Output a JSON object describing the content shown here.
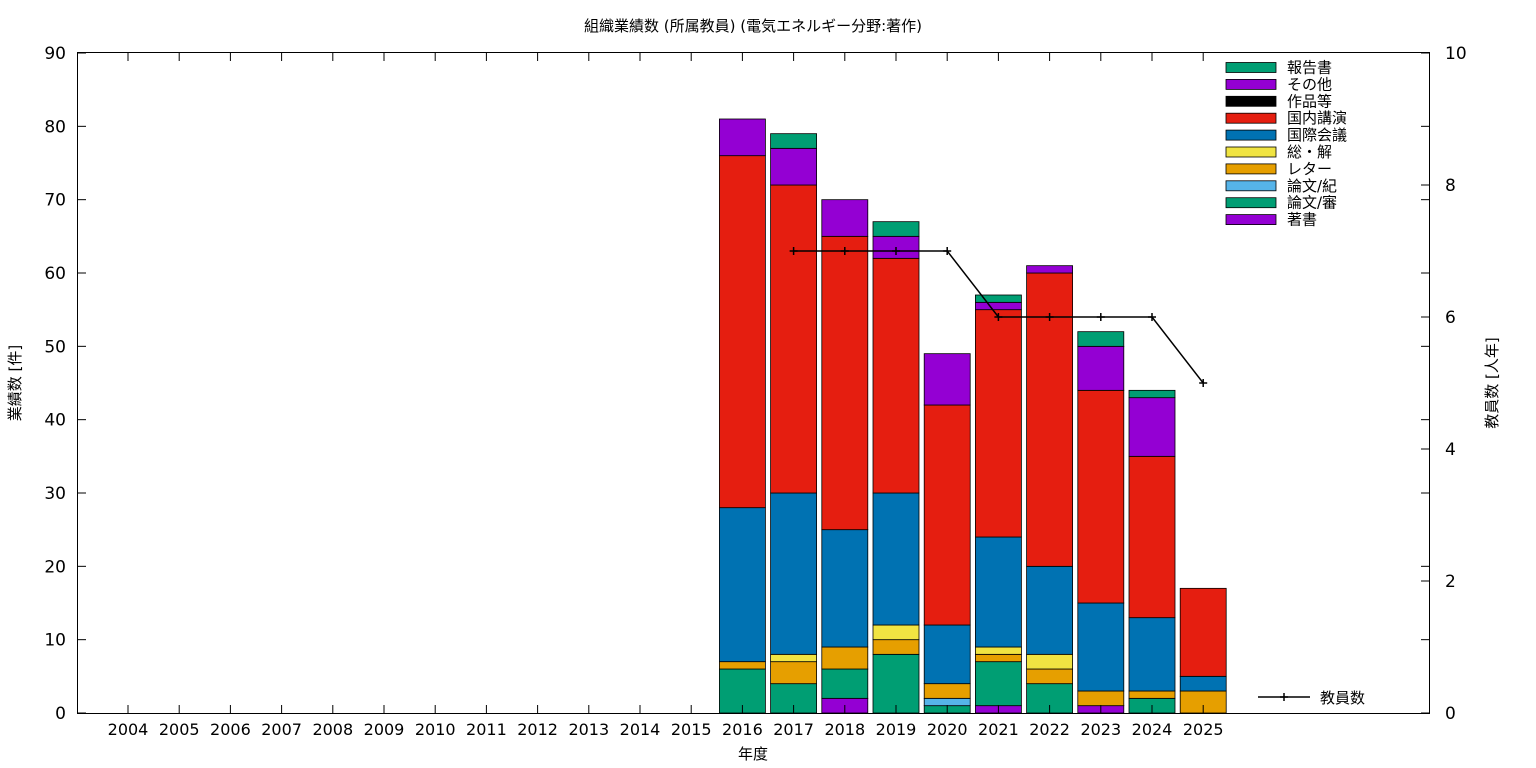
{
  "chart_data": {
    "type": "bar",
    "stacked": true,
    "title": "組織業績数 (所属教員) (電気エネルギー分野:著作)",
    "xlabel": "年度",
    "ylabel": "業績数 [件]",
    "y2label": "教員数 [人年]",
    "ylim": [
      0,
      90
    ],
    "y2lim": [
      0,
      10
    ],
    "yticks": [
      "0",
      "10",
      "20",
      "30",
      "40",
      "50",
      "60",
      "70",
      "80",
      "90"
    ],
    "y2ticks": [
      "0",
      "2",
      "4",
      "6",
      "8",
      "10"
    ],
    "grid": false,
    "legend_position": "top-right",
    "categories": [
      "2004",
      "2005",
      "2006",
      "2007",
      "2008",
      "2009",
      "2010",
      "2011",
      "2012",
      "2013",
      "2014",
      "2015",
      "2016",
      "2017",
      "2018",
      "2019",
      "2020",
      "2021",
      "2022",
      "2023",
      "2024",
      "2025"
    ],
    "series": [
      {
        "name": "著書",
        "color": "#9400d3",
        "values": [
          0,
          0,
          0,
          0,
          0,
          0,
          0,
          0,
          0,
          0,
          0,
          0,
          0,
          0,
          2,
          0,
          0,
          1,
          0,
          1,
          0,
          0
        ]
      },
      {
        "name": "論文/審",
        "color": "#009e73",
        "values": [
          0,
          0,
          0,
          0,
          0,
          0,
          0,
          0,
          0,
          0,
          0,
          0,
          6,
          4,
          4,
          8,
          1,
          6,
          4,
          0,
          2,
          0
        ]
      },
      {
        "name": "論文/紀",
        "color": "#56b4e9",
        "values": [
          0,
          0,
          0,
          0,
          0,
          0,
          0,
          0,
          0,
          0,
          0,
          0,
          0,
          0,
          0,
          0,
          1,
          0,
          0,
          0,
          0,
          0
        ]
      },
      {
        "name": "レター",
        "color": "#e69f00",
        "values": [
          0,
          0,
          0,
          0,
          0,
          0,
          0,
          0,
          0,
          0,
          0,
          0,
          1,
          3,
          3,
          2,
          2,
          1,
          2,
          2,
          1,
          3
        ]
      },
      {
        "name": "総・解",
        "color": "#f0e442",
        "values": [
          0,
          0,
          0,
          0,
          0,
          0,
          0,
          0,
          0,
          0,
          0,
          0,
          0,
          1,
          0,
          2,
          0,
          1,
          2,
          0,
          0,
          0
        ]
      },
      {
        "name": "国際会議",
        "color": "#0072b2",
        "values": [
          0,
          0,
          0,
          0,
          0,
          0,
          0,
          0,
          0,
          0,
          0,
          0,
          21,
          22,
          16,
          18,
          8,
          15,
          12,
          12,
          10,
          2
        ]
      },
      {
        "name": "国内講演",
        "color": "#e51e10",
        "values": [
          0,
          0,
          0,
          0,
          0,
          0,
          0,
          0,
          0,
          0,
          0,
          0,
          48,
          42,
          40,
          32,
          30,
          31,
          40,
          29,
          22,
          12
        ]
      },
      {
        "name": "作品等",
        "color": "#000000",
        "values": [
          0,
          0,
          0,
          0,
          0,
          0,
          0,
          0,
          0,
          0,
          0,
          0,
          0,
          0,
          0,
          0,
          0,
          0,
          0,
          0,
          0,
          0
        ]
      },
      {
        "name": "その他",
        "color": "#9400d3",
        "values": [
          0,
          0,
          0,
          0,
          0,
          0,
          0,
          0,
          0,
          0,
          0,
          0,
          5,
          5,
          5,
          3,
          7,
          1,
          1,
          6,
          8,
          0
        ]
      },
      {
        "name": "報告書",
        "color": "#009e73",
        "values": [
          0,
          0,
          0,
          0,
          0,
          0,
          0,
          0,
          0,
          0,
          0,
          0,
          0,
          2,
          0,
          2,
          0,
          1,
          0,
          2,
          1,
          0
        ]
      }
    ],
    "line": {
      "name": "教員数",
      "axis": "y2",
      "color": "#000000",
      "x": [
        "2017",
        "2018",
        "2019",
        "2020",
        "2021",
        "2022",
        "2023",
        "2024",
        "2025"
      ],
      "values": [
        7,
        7,
        7,
        7,
        6,
        6,
        6,
        6,
        5
      ]
    },
    "legend_order": [
      "報告書",
      "その他",
      "作品等",
      "国内講演",
      "国際会議",
      "総・解",
      "レター",
      "論文/紀",
      "論文/審",
      "著書"
    ]
  }
}
